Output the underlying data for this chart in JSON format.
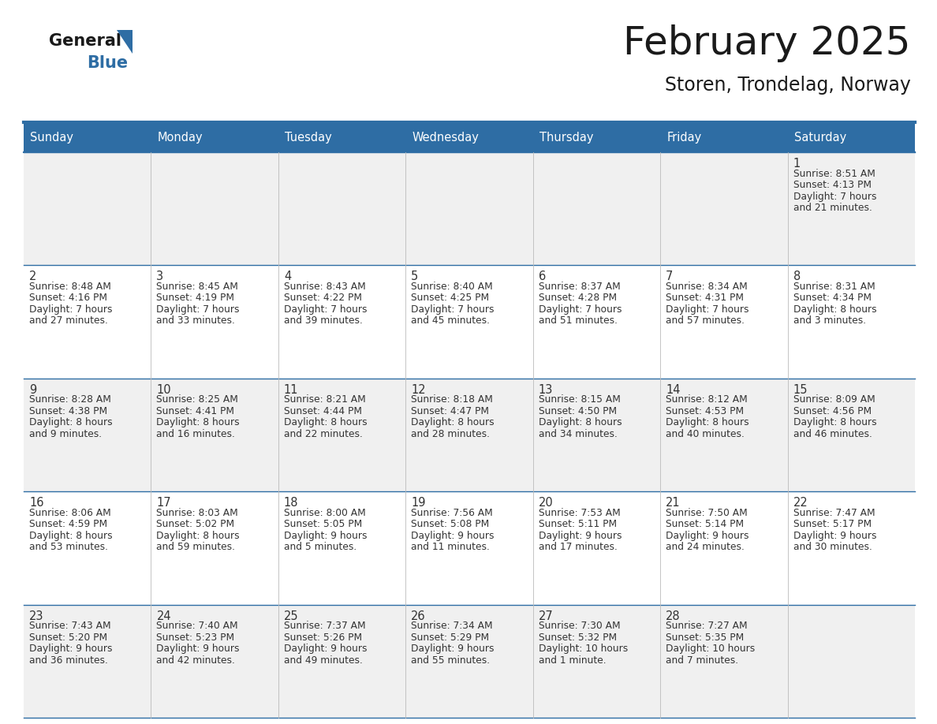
{
  "title": "February 2025",
  "subtitle": "Storen, Trondelag, Norway",
  "header_bg": "#2E6DA4",
  "header_text_color": "#FFFFFF",
  "cell_bg_light": "#F0F0F0",
  "cell_bg_white": "#FFFFFF",
  "border_color": "#2E6DA4",
  "day_names": [
    "Sunday",
    "Monday",
    "Tuesday",
    "Wednesday",
    "Thursday",
    "Friday",
    "Saturday"
  ],
  "title_color": "#1a1a1a",
  "subtitle_color": "#1a1a1a",
  "date_color": "#333333",
  "info_color": "#333333",
  "logo_text_color": "#1a1a1a",
  "logo_blue_color": "#2E6DA4",
  "days": [
    {
      "day": 1,
      "col": 6,
      "row": 0,
      "sunrise": "8:51 AM",
      "sunset": "4:13 PM",
      "daylight": "7 hours and 21 minutes."
    },
    {
      "day": 2,
      "col": 0,
      "row": 1,
      "sunrise": "8:48 AM",
      "sunset": "4:16 PM",
      "daylight": "7 hours and 27 minutes."
    },
    {
      "day": 3,
      "col": 1,
      "row": 1,
      "sunrise": "8:45 AM",
      "sunset": "4:19 PM",
      "daylight": "7 hours and 33 minutes."
    },
    {
      "day": 4,
      "col": 2,
      "row": 1,
      "sunrise": "8:43 AM",
      "sunset": "4:22 PM",
      "daylight": "7 hours and 39 minutes."
    },
    {
      "day": 5,
      "col": 3,
      "row": 1,
      "sunrise": "8:40 AM",
      "sunset": "4:25 PM",
      "daylight": "7 hours and 45 minutes."
    },
    {
      "day": 6,
      "col": 4,
      "row": 1,
      "sunrise": "8:37 AM",
      "sunset": "4:28 PM",
      "daylight": "7 hours and 51 minutes."
    },
    {
      "day": 7,
      "col": 5,
      "row": 1,
      "sunrise": "8:34 AM",
      "sunset": "4:31 PM",
      "daylight": "7 hours and 57 minutes."
    },
    {
      "day": 8,
      "col": 6,
      "row": 1,
      "sunrise": "8:31 AM",
      "sunset": "4:34 PM",
      "daylight": "8 hours and 3 minutes."
    },
    {
      "day": 9,
      "col": 0,
      "row": 2,
      "sunrise": "8:28 AM",
      "sunset": "4:38 PM",
      "daylight": "8 hours and 9 minutes."
    },
    {
      "day": 10,
      "col": 1,
      "row": 2,
      "sunrise": "8:25 AM",
      "sunset": "4:41 PM",
      "daylight": "8 hours and 16 minutes."
    },
    {
      "day": 11,
      "col": 2,
      "row": 2,
      "sunrise": "8:21 AM",
      "sunset": "4:44 PM",
      "daylight": "8 hours and 22 minutes."
    },
    {
      "day": 12,
      "col": 3,
      "row": 2,
      "sunrise": "8:18 AM",
      "sunset": "4:47 PM",
      "daylight": "8 hours and 28 minutes."
    },
    {
      "day": 13,
      "col": 4,
      "row": 2,
      "sunrise": "8:15 AM",
      "sunset": "4:50 PM",
      "daylight": "8 hours and 34 minutes."
    },
    {
      "day": 14,
      "col": 5,
      "row": 2,
      "sunrise": "8:12 AM",
      "sunset": "4:53 PM",
      "daylight": "8 hours and 40 minutes."
    },
    {
      "day": 15,
      "col": 6,
      "row": 2,
      "sunrise": "8:09 AM",
      "sunset": "4:56 PM",
      "daylight": "8 hours and 46 minutes."
    },
    {
      "day": 16,
      "col": 0,
      "row": 3,
      "sunrise": "8:06 AM",
      "sunset": "4:59 PM",
      "daylight": "8 hours and 53 minutes."
    },
    {
      "day": 17,
      "col": 1,
      "row": 3,
      "sunrise": "8:03 AM",
      "sunset": "5:02 PM",
      "daylight": "8 hours and 59 minutes."
    },
    {
      "day": 18,
      "col": 2,
      "row": 3,
      "sunrise": "8:00 AM",
      "sunset": "5:05 PM",
      "daylight": "9 hours and 5 minutes."
    },
    {
      "day": 19,
      "col": 3,
      "row": 3,
      "sunrise": "7:56 AM",
      "sunset": "5:08 PM",
      "daylight": "9 hours and 11 minutes."
    },
    {
      "day": 20,
      "col": 4,
      "row": 3,
      "sunrise": "7:53 AM",
      "sunset": "5:11 PM",
      "daylight": "9 hours and 17 minutes."
    },
    {
      "day": 21,
      "col": 5,
      "row": 3,
      "sunrise": "7:50 AM",
      "sunset": "5:14 PM",
      "daylight": "9 hours and 24 minutes."
    },
    {
      "day": 22,
      "col": 6,
      "row": 3,
      "sunrise": "7:47 AM",
      "sunset": "5:17 PM",
      "daylight": "9 hours and 30 minutes."
    },
    {
      "day": 23,
      "col": 0,
      "row": 4,
      "sunrise": "7:43 AM",
      "sunset": "5:20 PM",
      "daylight": "9 hours and 36 minutes."
    },
    {
      "day": 24,
      "col": 1,
      "row": 4,
      "sunrise": "7:40 AM",
      "sunset": "5:23 PM",
      "daylight": "9 hours and 42 minutes."
    },
    {
      "day": 25,
      "col": 2,
      "row": 4,
      "sunrise": "7:37 AM",
      "sunset": "5:26 PM",
      "daylight": "9 hours and 49 minutes."
    },
    {
      "day": 26,
      "col": 3,
      "row": 4,
      "sunrise": "7:34 AM",
      "sunset": "5:29 PM",
      "daylight": "9 hours and 55 minutes."
    },
    {
      "day": 27,
      "col": 4,
      "row": 4,
      "sunrise": "7:30 AM",
      "sunset": "5:32 PM",
      "daylight": "10 hours and 1 minute."
    },
    {
      "day": 28,
      "col": 5,
      "row": 4,
      "sunrise": "7:27 AM",
      "sunset": "5:35 PM",
      "daylight": "10 hours and 7 minutes."
    }
  ]
}
